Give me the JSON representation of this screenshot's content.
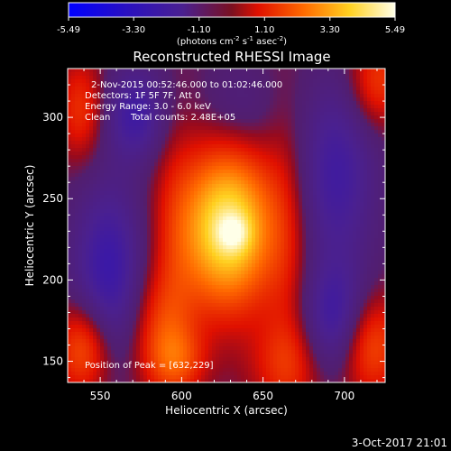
{
  "colorbar": {
    "tick_labels": [
      "-5.49",
      "-3.30",
      "-1.10",
      "1.10",
      "3.30",
      "5.49"
    ],
    "tick_values": [
      -5.49,
      -3.3,
      -1.1,
      1.1,
      3.3,
      5.49
    ],
    "range": [
      -5.49,
      5.49
    ],
    "unit_label": "(photons cm",
    "unit_sup1": "-2",
    "unit_mid1": " s",
    "unit_sup2": "-1",
    "unit_mid2": " asec",
    "unit_sup3": "-2",
    "unit_end": ")"
  },
  "chart_data": {
    "type": "heatmap",
    "title": "Reconstructed RHESSI Image",
    "xlabel": "Heliocentric X (arcsec)",
    "ylabel": "Heliocentric Y (arcsec)",
    "xlim": [
      530,
      725
    ],
    "ylim": [
      137,
      330
    ],
    "xticks": [
      550,
      600,
      650,
      700
    ],
    "yticks": [
      150,
      200,
      250,
      300
    ],
    "colormap": "rhessi-blue-to-white",
    "colors": [
      "#0000ff",
      "#3a1a8a",
      "#ff1000",
      "#ff8000",
      "#ffff60",
      "#ffffff"
    ],
    "annotations": {
      "time_range": "2-Nov-2015 00:52:46.000 to 01:02:46.000",
      "detectors": "Detectors: 1F 5F 7F, Att 0",
      "energy": "Energy Range: 3.0 - 6.0 keV",
      "clean": "Clean",
      "counts": "Total counts: 2.48E+05",
      "peak": "Position of Peak = [632,229]"
    },
    "peak": [
      632,
      229
    ],
    "peak_value": 5.49,
    "features": [
      {
        "kind": "positive",
        "x": 628,
        "y": 232,
        "sx": 20,
        "sy": 34,
        "value": 4.9
      },
      {
        "kind": "positive",
        "x": 632,
        "y": 229,
        "sx": 7,
        "sy": 8,
        "value": 1.5
      },
      {
        "kind": "positive",
        "x": 715,
        "y": 160,
        "sx": 14,
        "sy": 22,
        "value": 2.3
      },
      {
        "kind": "positive",
        "x": 540,
        "y": 158,
        "sx": 12,
        "sy": 20,
        "value": 2.4
      },
      {
        "kind": "positive",
        "x": 588,
        "y": 168,
        "sx": 14,
        "sy": 26,
        "value": 1.7
      },
      {
        "kind": "positive",
        "x": 598,
        "y": 150,
        "sx": 12,
        "sy": 14,
        "value": 1.4
      },
      {
        "kind": "positive",
        "x": 665,
        "y": 148,
        "sx": 16,
        "sy": 20,
        "value": 1.4
      },
      {
        "kind": "positive",
        "x": 720,
        "y": 322,
        "sx": 12,
        "sy": 20,
        "value": 1.8
      },
      {
        "kind": "positive",
        "x": 538,
        "y": 305,
        "sx": 10,
        "sy": 22,
        "value": 1.6
      },
      {
        "kind": "positive",
        "x": 665,
        "y": 225,
        "sx": 10,
        "sy": 60,
        "value": 0.9
      },
      {
        "kind": "positive",
        "x": 595,
        "y": 235,
        "sx": 10,
        "sy": 50,
        "value": 0.7
      },
      {
        "kind": "negative",
        "x": 572,
        "y": 302,
        "sx": 13,
        "sy": 20,
        "value": -2.1
      },
      {
        "kind": "negative",
        "x": 555,
        "y": 205,
        "sx": 15,
        "sy": 38,
        "value": -2.4
      },
      {
        "kind": "negative",
        "x": 695,
        "y": 265,
        "sx": 17,
        "sy": 40,
        "value": -2.0
      },
      {
        "kind": "negative",
        "x": 695,
        "y": 175,
        "sx": 14,
        "sy": 24,
        "value": -2.3
      },
      {
        "kind": "negative",
        "x": 635,
        "y": 305,
        "sx": 16,
        "sy": 20,
        "value": -0.8
      }
    ],
    "background_value": -0.2
  },
  "footer": {
    "timestamp": "3-Oct-2017 21:01"
  }
}
